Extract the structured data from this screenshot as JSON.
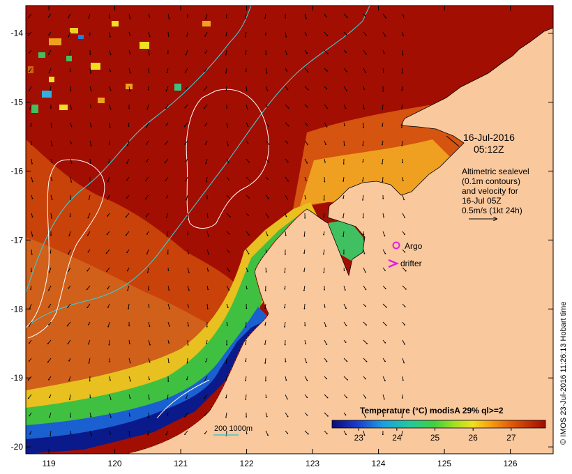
{
  "map": {
    "title_date": "16-Jul-2016",
    "title_time": "05:12Z",
    "lon_ticks": [
      "119",
      "120",
      "121",
      "122",
      "123",
      "124",
      "125",
      "126"
    ],
    "lat_ticks": [
      "-14",
      "-15",
      "-16",
      "-17",
      "-18",
      "-19",
      "-20"
    ],
    "lon_range": [
      118.65,
      126.65
    ],
    "lat_range": [
      -20.1,
      -13.6
    ],
    "notes": {
      "line1": "Altimetric sealevel",
      "line2": "(0.1m contours)",
      "line3": "and velocity for",
      "line4": "16-Jul 05Z",
      "line5": "0.5m/s (1kt 24h)"
    },
    "legend": {
      "argo_label": "Argo",
      "drifter_label": "drifter",
      "argo_color": "#e020e0",
      "drifter_color": "#e020e0"
    },
    "bathy_label": "200  1000m",
    "bathy_color": "#40c8d0",
    "colorbar": {
      "title": "Temperature (°C) modisA 29% ql>=2",
      "ticks": [
        "23",
        "24",
        "25",
        "26",
        "27"
      ],
      "range": [
        22.3,
        27.9
      ]
    },
    "credit": "© IMOS 23-Jul-2016 11:26:13 Hobart time",
    "colors": {
      "land": "#f9c89d",
      "warm": "#a30e02",
      "cold": "#0a1a8a"
    }
  }
}
